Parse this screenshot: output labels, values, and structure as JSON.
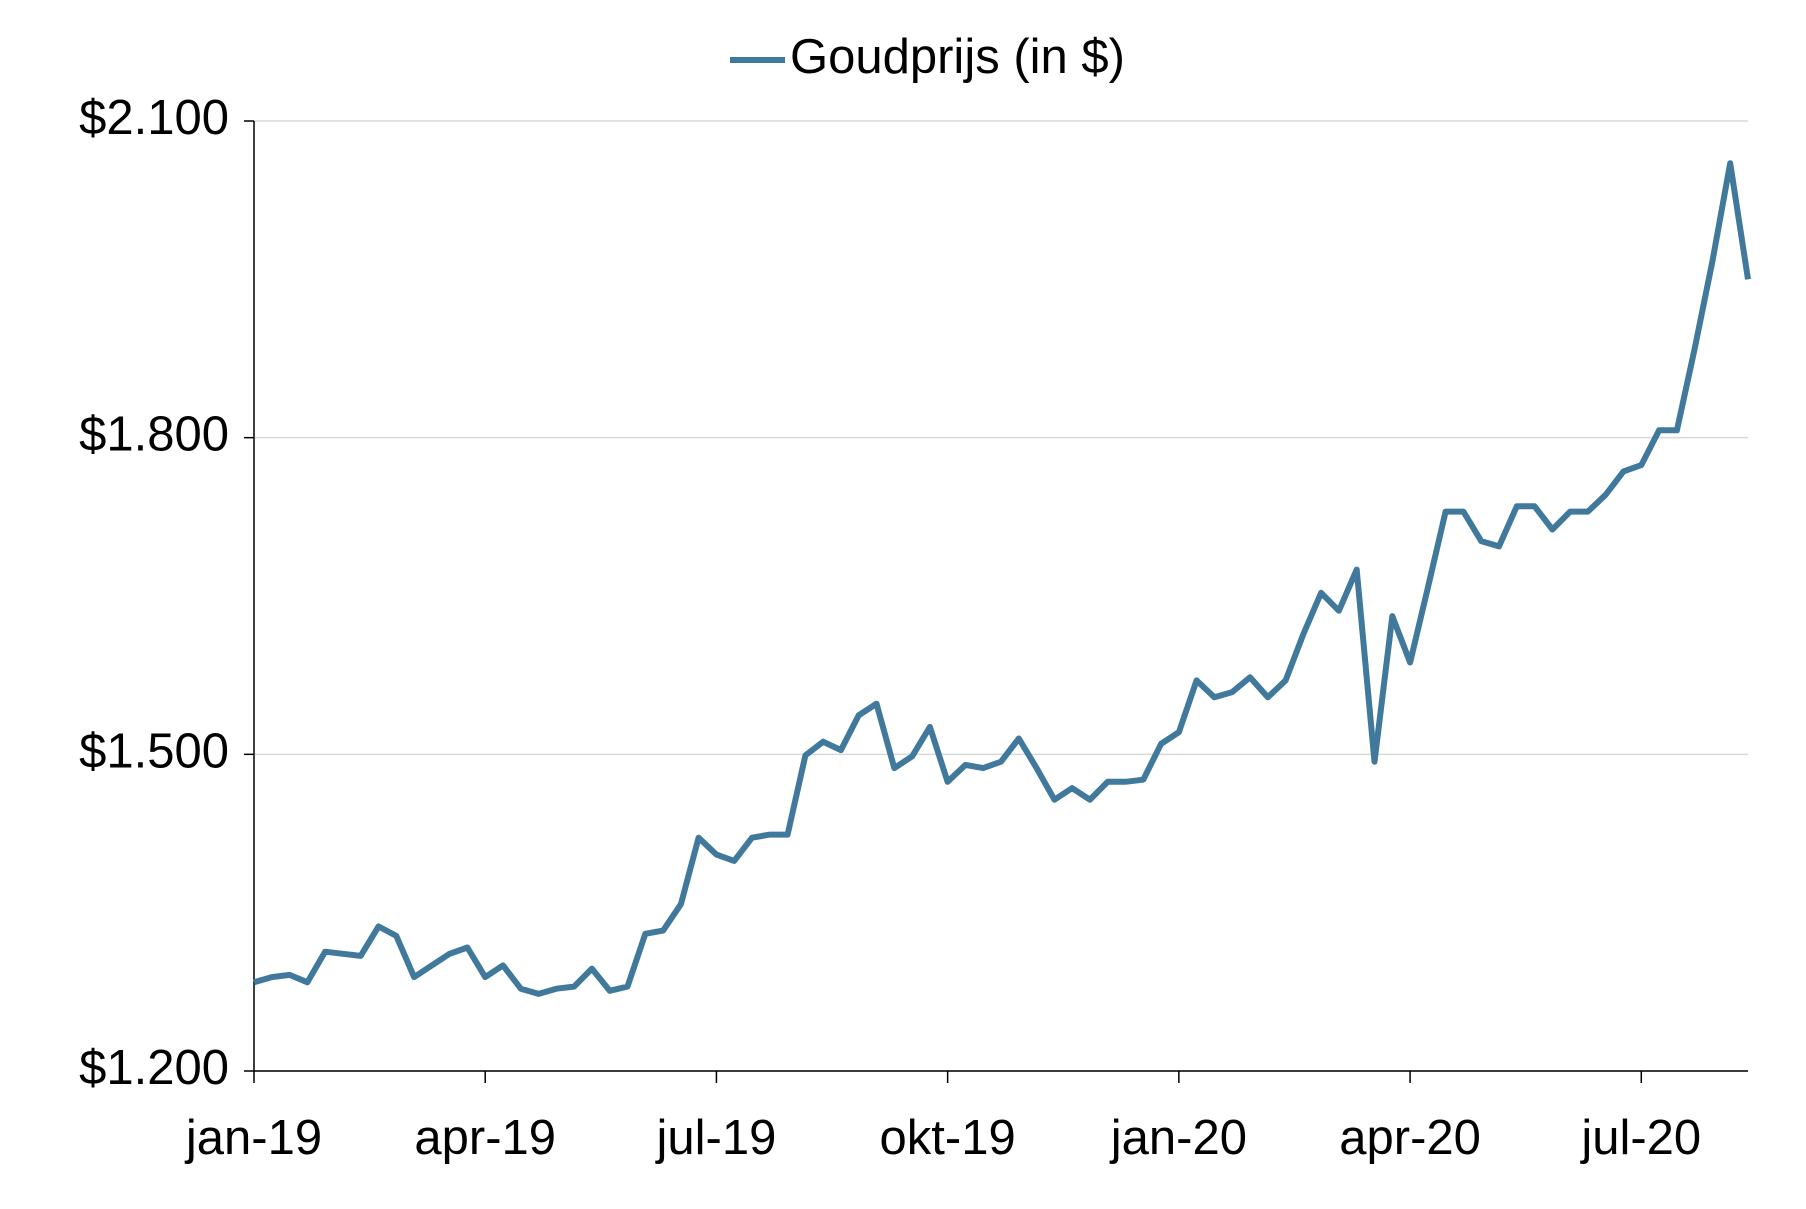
{
  "chart_data": {
    "type": "line",
    "categories": [
      "jan-19",
      null,
      null,
      null,
      null,
      null,
      null,
      null,
      null,
      null,
      null,
      null,
      null,
      "apr-19",
      null,
      null,
      null,
      null,
      null,
      null,
      null,
      null,
      null,
      null,
      null,
      null,
      "jul-19",
      null,
      null,
      null,
      null,
      null,
      null,
      null,
      null,
      null,
      null,
      null,
      null,
      "okt-19",
      null,
      null,
      null,
      null,
      null,
      null,
      null,
      null,
      null,
      null,
      null,
      null,
      "jan-20",
      null,
      null,
      null,
      null,
      null,
      null,
      null,
      null,
      null,
      null,
      null,
      null,
      "apr-20",
      null,
      null,
      null,
      null,
      null,
      null,
      null,
      null,
      null,
      null,
      null,
      null,
      "jul-20",
      null,
      null,
      null,
      null,
      null,
      null
    ],
    "series": [
      {
        "name": "Goudprijs (in $)",
        "color": "#41799c",
        "values": [
          1284,
          1289,
          1291,
          1284,
          1313,
          1311,
          1309,
          1337,
          1328,
          1289,
          1300,
          1311,
          1317,
          1289,
          1300,
          1278,
          1273,
          1278,
          1280,
          1297,
          1276,
          1280,
          1330,
          1333,
          1358,
          1421,
          1405,
          1399,
          1421,
          1424,
          1424,
          1499,
          1512,
          1504,
          1537,
          1548,
          1487,
          1498,
          1526,
          1474,
          1490,
          1487,
          1493,
          1515,
          1487,
          1457,
          1468,
          1457,
          1474,
          1474,
          1476,
          1510,
          1521,
          1570,
          1554,
          1559,
          1573,
          1554,
          1570,
          1614,
          1653,
          1636,
          1675,
          1493,
          1631,
          1587,
          1658,
          1730,
          1730,
          1702,
          1697,
          1735,
          1735,
          1713,
          1730,
          1730,
          1746,
          1768,
          1774,
          1807,
          1807,
          1884,
          1967,
          2060,
          1950
        ]
      }
    ],
    "ylim": [
      1200,
      2100
    ],
    "yticks": [
      {
        "value": 1200,
        "label": "$1.200"
      },
      {
        "value": 1500,
        "label": "$1.500"
      },
      {
        "value": 1800,
        "label": "$1.800"
      },
      {
        "value": 2100,
        "label": "$2.100"
      }
    ],
    "grid": true
  }
}
